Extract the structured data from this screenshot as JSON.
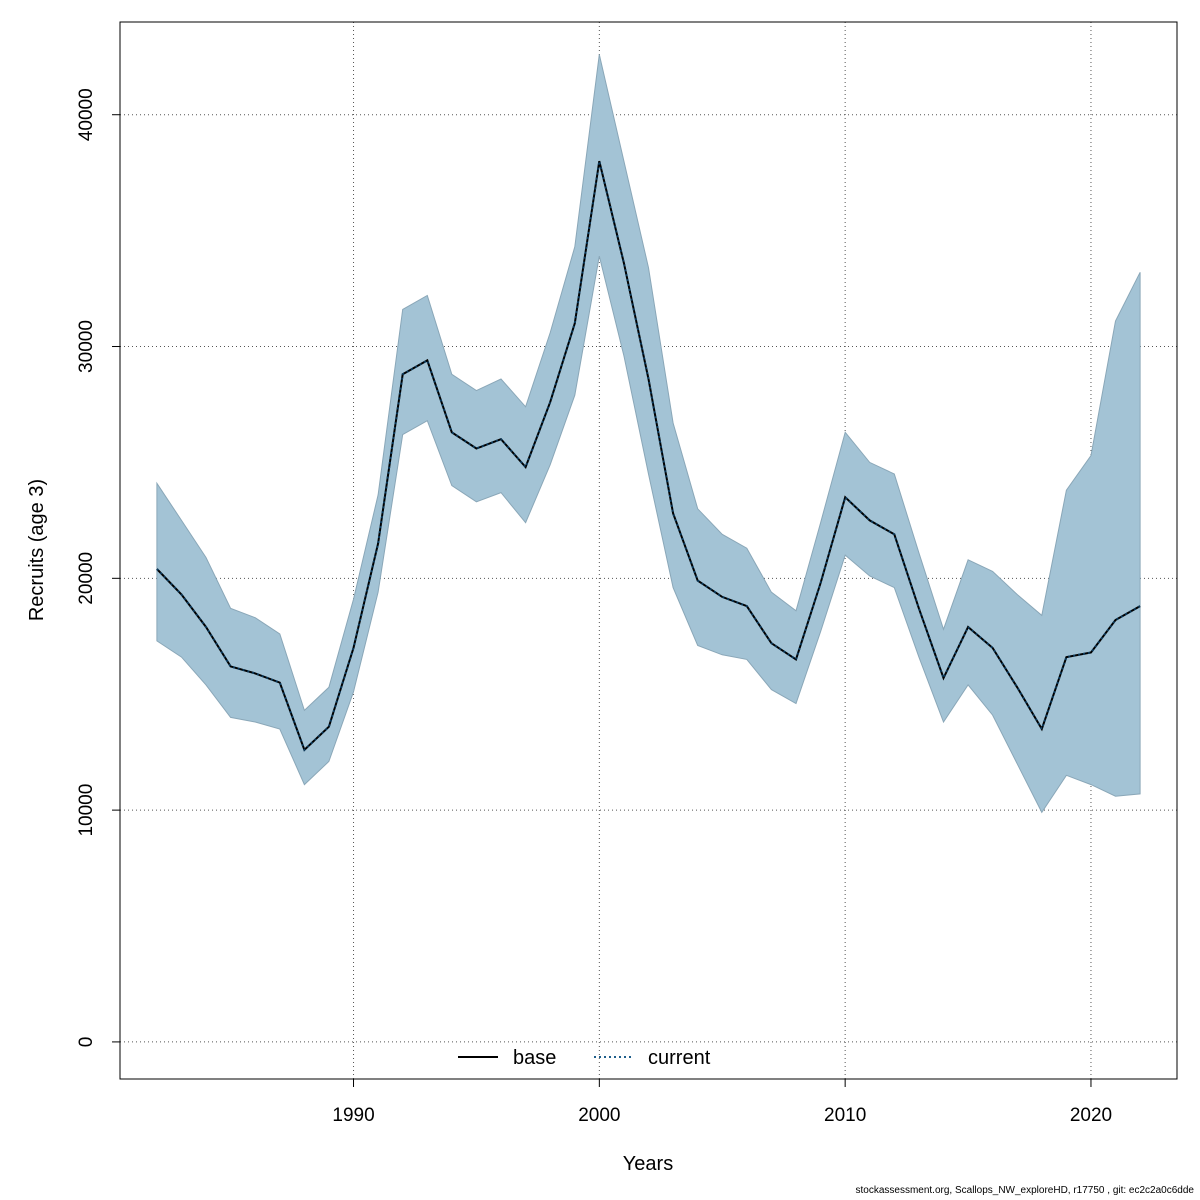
{
  "chart_data": {
    "type": "area",
    "title": "",
    "xlabel": "Years",
    "ylabel": "Recruits (age 3)",
    "xlim": [
      1980.5,
      2023.5
    ],
    "ylim": [
      -1600,
      44000
    ],
    "x_ticks": [
      1990,
      2000,
      2010,
      2020
    ],
    "y_ticks": [
      0,
      10000,
      20000,
      30000,
      40000
    ],
    "grid": true,
    "legend_position": "bottom-center",
    "legend": [
      {
        "name": "base",
        "style": "solid",
        "color": "#000000"
      },
      {
        "name": "current",
        "style": "dotted",
        "color": "#1f5f8b"
      }
    ],
    "band_color": "#a3c3d5",
    "x": [
      1982,
      1983,
      1984,
      1985,
      1986,
      1987,
      1988,
      1989,
      1990,
      1991,
      1992,
      1993,
      1994,
      1995,
      1996,
      1997,
      1998,
      1999,
      2000,
      2001,
      2002,
      2003,
      2004,
      2005,
      2006,
      2007,
      2008,
      2009,
      2010,
      2011,
      2012,
      2013,
      2014,
      2015,
      2016,
      2017,
      2018,
      2019,
      2020,
      2021,
      2022
    ],
    "series": [
      {
        "name": "base",
        "values": [
          20400,
          19300,
          17900,
          16200,
          15900,
          15500,
          12600,
          13600,
          17000,
          21500,
          28800,
          29400,
          26300,
          25600,
          26000,
          24800,
          27600,
          31000,
          38000,
          33600,
          28600,
          22800,
          19900,
          19200,
          18800,
          17200,
          16500,
          19800,
          23500,
          22500,
          21900,
          18700,
          15700,
          17900,
          17000,
          15300,
          13500,
          16600,
          16800,
          18200,
          18800
        ]
      },
      {
        "name": "current",
        "values": [
          20400,
          19300,
          17900,
          16200,
          15900,
          15500,
          12600,
          13600,
          17000,
          21500,
          28800,
          29400,
          26300,
          25600,
          26000,
          24800,
          27600,
          31000,
          38000,
          33600,
          28600,
          22800,
          19900,
          19200,
          18800,
          17200,
          16500,
          19800,
          23500,
          22500,
          21900,
          18700,
          15700,
          17900,
          17000,
          15300,
          13500,
          16600,
          16800,
          18200,
          18800
        ]
      }
    ],
    "band_upper": [
      24100,
      22500,
      20900,
      18700,
      18300,
      17600,
      14300,
      15300,
      19100,
      23600,
      31600,
      32200,
      28800,
      28100,
      28600,
      27400,
      30600,
      34300,
      42600,
      38000,
      33400,
      26700,
      23000,
      21900,
      21300,
      19400,
      18600,
      22400,
      26300,
      25000,
      24500,
      21100,
      17800,
      20800,
      20300,
      19300,
      18400,
      23800,
      25300,
      31100,
      33200
    ],
    "band_lower": [
      17300,
      16600,
      15400,
      14000,
      13800,
      13500,
      11100,
      12100,
      15100,
      19400,
      26200,
      26800,
      24000,
      23300,
      23700,
      22400,
      24900,
      27900,
      33900,
      29600,
      24500,
      19600,
      17100,
      16700,
      16500,
      15200,
      14600,
      17700,
      21000,
      20100,
      19600,
      16600,
      13800,
      15400,
      14100,
      12000,
      9900,
      11500,
      11100,
      10600,
      10700
    ],
    "footer": "stockassessment.org, Scallops_NW_exploreHD, r17750 , git: ec2c2a0c6dde"
  }
}
